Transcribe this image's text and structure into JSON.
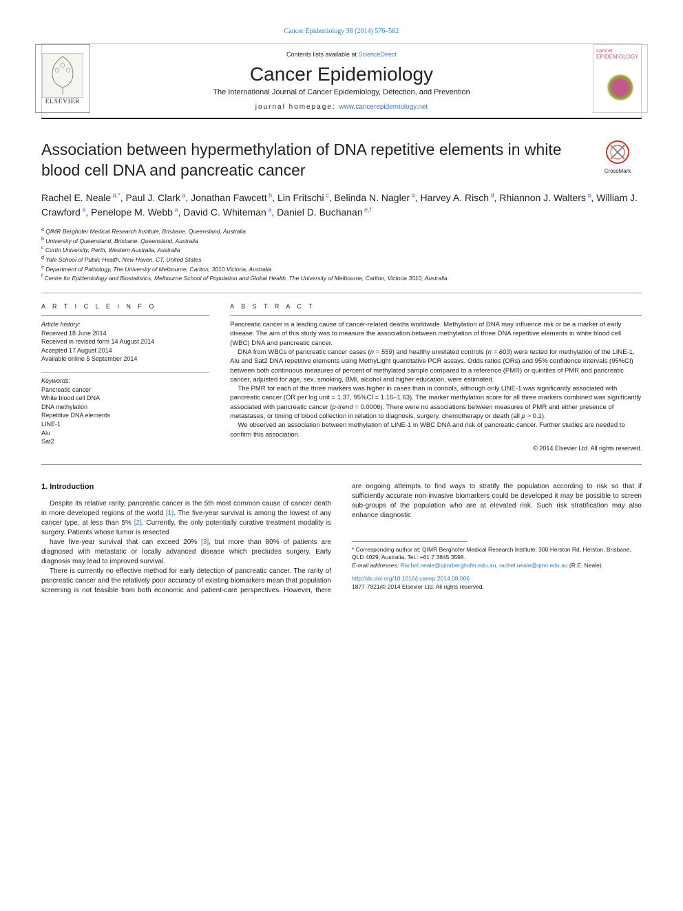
{
  "colors": {
    "link": "#3377cc",
    "rule": "#999999",
    "text": "#222222"
  },
  "fonts": {
    "body": "sans-serif, Arial",
    "serif": "Georgia, Times New Roman",
    "title_size": 23,
    "author_size": 14,
    "body_size": 10,
    "abstract_size": 9.5
  },
  "header": {
    "top_link": "Cancer Epidemiology 38 (2014) 576–582",
    "publisher_logo_alt": "Elsevier tree logo",
    "publisher_name": "ELSEVIER",
    "contents_prefix": "Contents lists available at ",
    "contents_link": "ScienceDirect",
    "journal_name": "Cancer Epidemiology",
    "journal_subtitle": "The International Journal of Cancer Epidemiology, Detection, and Prevention",
    "homepage_label": "journal homepage: ",
    "homepage_url": "www.cancerepidemiology.net",
    "cover_title": "cancer EPIDEMIOLOGY"
  },
  "crossmark": {
    "label": "CrossMark"
  },
  "title": "Association between hypermethylation of DNA repetitive elements in white blood cell DNA and pancreatic cancer",
  "authors": [
    {
      "name": "Rachel E. Neale",
      "aff": "a,*"
    },
    {
      "name": "Paul J. Clark",
      "aff": "a"
    },
    {
      "name": "Jonathan Fawcett",
      "aff": "b"
    },
    {
      "name": "Lin Fritschi",
      "aff": "c"
    },
    {
      "name": "Belinda N. Nagler",
      "aff": "a"
    },
    {
      "name": "Harvey A. Risch",
      "aff": "d"
    },
    {
      "name": "Rhiannon J. Walters",
      "aff": "a"
    },
    {
      "name": "William J. Crawford",
      "aff": "a"
    },
    {
      "name": "Penelope M. Webb",
      "aff": "a"
    },
    {
      "name": "David C. Whiteman",
      "aff": "a"
    },
    {
      "name": "Daniel D. Buchanan",
      "aff": "e,f"
    }
  ],
  "affiliations": [
    {
      "sup": "a",
      "text": "QIMR Berghofer Medical Research Institute, Brisbane, Queensland, Australia"
    },
    {
      "sup": "b",
      "text": "University of Queensland, Brisbane, Queensland, Australia"
    },
    {
      "sup": "c",
      "text": "Curtin University, Perth, Western Australia, Australia"
    },
    {
      "sup": "d",
      "text": "Yale School of Public Health, New Haven, CT, United States"
    },
    {
      "sup": "e",
      "text": "Department of Pathology, The University of Melbourne, Carlton, 3010 Victoria, Australia"
    },
    {
      "sup": "f",
      "text": "Centre for Epidemiology and Biostatistics, Melbourne School of Population and Global Health, The University of Melbourne, Carlton, Victoria 3010, Australia"
    }
  ],
  "article_info": {
    "heading": "A R T I C L E  I N F O",
    "history_label": "Article history:",
    "history": [
      "Received 18 June 2014",
      "Received in revised form 14 August 2014",
      "Accepted 17 August 2014",
      "Available online 5 September 2014"
    ],
    "keywords_label": "Keywords:",
    "keywords": [
      "Pancreatic cancer",
      "White blood cell DNA",
      "DNA methylation",
      "Repetitive DNA elements",
      "LINE-1",
      "Alu",
      "Sat2"
    ]
  },
  "abstract": {
    "heading": "A B S T R A C T",
    "paragraphs": [
      "Pancreatic cancer is a leading cause of cancer-related deaths worldwide. Methylation of DNA may influence risk or be a marker of early disease. The aim of this study was to measure the association between methylation of three DNA repetitive elements in white blood cell (WBC) DNA and pancreatic cancer.",
      "DNA from WBCs of pancreatic cancer cases (n = 559) and healthy unrelated controls (n = 603) were tested for methylation of the LINE-1, Alu and Sat2 DNA repetitive elements using MethyLight quantitative PCR assays. Odds ratios (ORs) and 95% confidence intervals (95%CI) between both continuous measures of percent of methylated sample compared to a reference (PMR) or quintiles of PMR and pancreatic cancer, adjusted for age, sex, smoking, BMI, alcohol and higher education, were estimated.",
      "The PMR for each of the three markers was higher in cases than in controls, although only LINE-1 was significantly associated with pancreatic cancer (OR per log unit = 1.37, 95%CI = 1.16–1.63). The marker methylation score for all three markers combined was significantly associated with pancreatic cancer (p-trend = 0.0006). There were no associations between measures of PMR and either presence of metastases, or timing of blood collection in relation to diagnosis, surgery, chemotherapy or death (all p > 0.1).",
      "We observed an association between methylation of LINE-1 in WBC DNA and risk of pancreatic cancer. Further studies are needed to confirm this association."
    ],
    "copyright": "© 2014 Elsevier Ltd. All rights reserved."
  },
  "body": {
    "section_heading": "1. Introduction",
    "paragraphs": [
      "Despite its relative rarity, pancreatic cancer is the 5th most common cause of cancer death in more developed regions of the world [1]. The five-year survival is among the lowest of any cancer type, at less than 5% [2]. Currently, the only potentially curative treatment modality is surgery. Patients whose tumor is resected",
      "have five-year survival that can exceed 20% [3], but more than 80% of patients are diagnosed with metastatic or locally advanced disease which precludes surgery. Early diagnosis may lead to improved survival.",
      "There is currently no effective method for early detection of pancreatic cancer. The rarity of pancreatic cancer and the relatively poor accuracy of existing biomarkers mean that population screening is not feasible from both economic and patient-care perspectives. However, there are ongoing attempts to find ways to stratify the population according to risk so that if sufficiently accurate non-invasive biomarkers could be developed it may be possible to screen sub-groups of the population who are at elevated risk. Such risk stratification may also enhance diagnostic"
    ]
  },
  "footnotes": {
    "corresponding": "* Corresponding author at: QIMR Berghofer Medical Research Institute, 300 Herston Rd, Herston, Brisbane, QLD 4029, Australia. Tel.: +61 7 3845 3598.",
    "email_label": "E-mail addresses: ",
    "emails": "Rachel.neale@qimrberghofer.edu.au, rachel.neale@qimr.edu.au",
    "email_suffix": " (R.E. Neale).",
    "doi": "http://dx.doi.org/10.1016/j.canep.2014.08.006",
    "issn_line": "1877-7821/© 2014 Elsevier Ltd. All rights reserved."
  }
}
